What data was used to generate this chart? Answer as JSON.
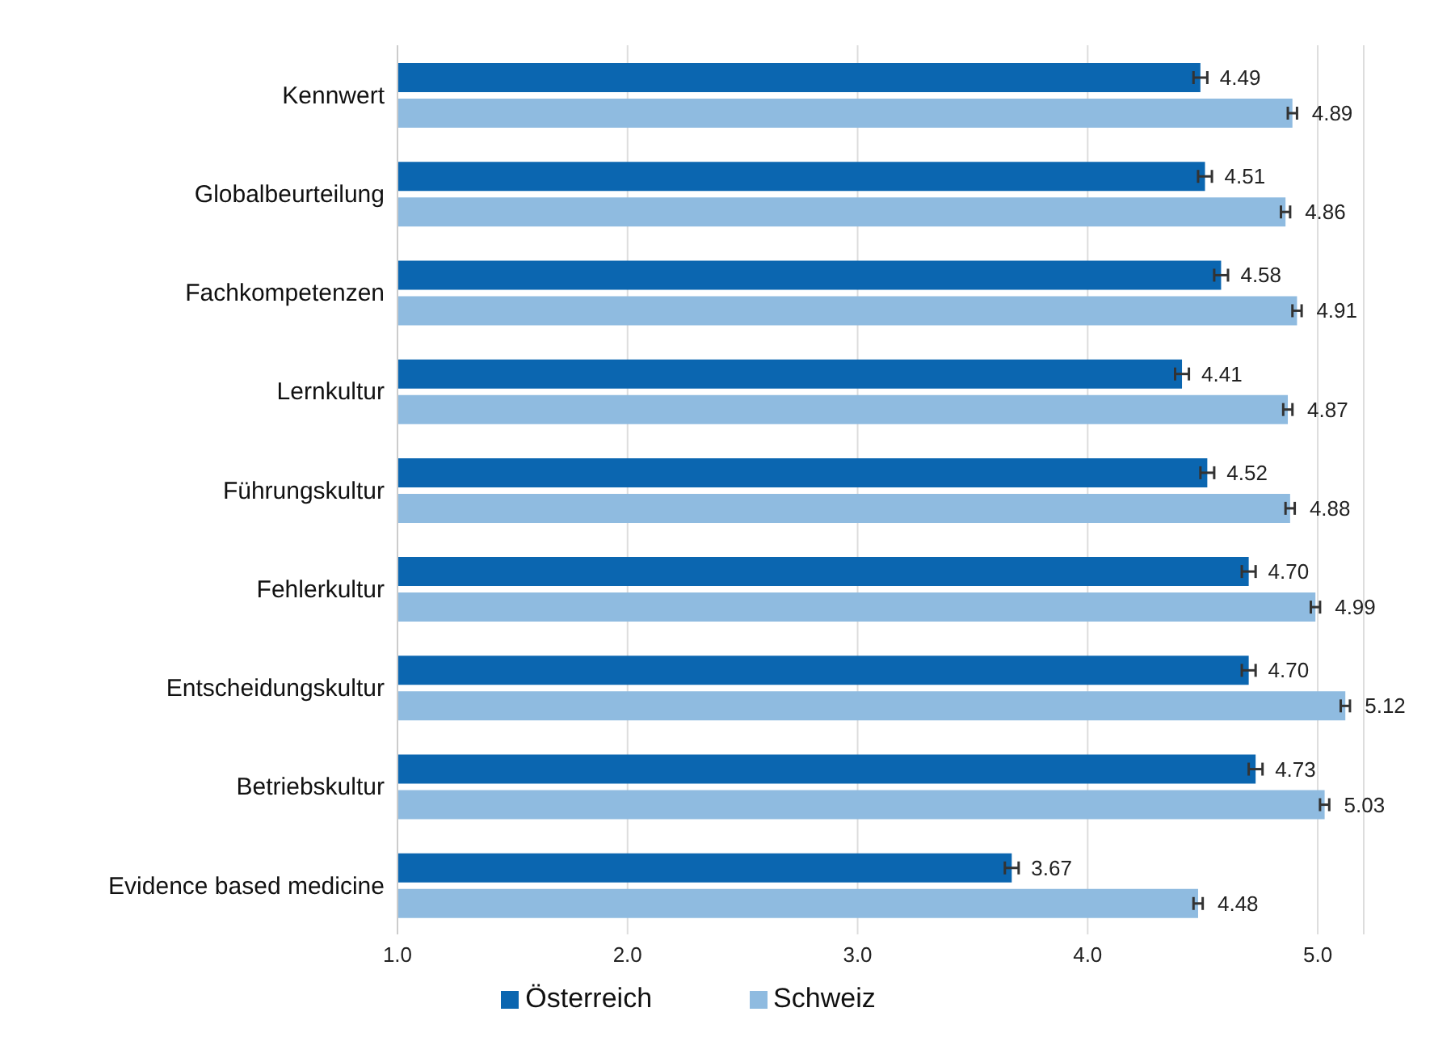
{
  "chart_data": {
    "type": "bar",
    "orientation": "horizontal",
    "categories": [
      "Kennwert",
      "Globalbeurteilung",
      "Fachkompetenzen",
      "Lernkultur",
      "Führungskultur",
      "Fehlerkultur",
      "Entscheidungskultur",
      "Betriebskultur",
      "Evidence based medicine"
    ],
    "series": [
      {
        "name": "Österreich",
        "color": "#0b66b0",
        "values": [
          4.49,
          4.51,
          4.58,
          4.41,
          4.52,
          4.7,
          4.7,
          4.73,
          3.67
        ],
        "errors": [
          0.03,
          0.03,
          0.03,
          0.03,
          0.03,
          0.03,
          0.03,
          0.03,
          0.03
        ],
        "value_labels": [
          "4.49",
          "4.51",
          "4.58",
          "4.41",
          "4.52",
          "4.70",
          "4.70",
          "4.73",
          "3.67"
        ]
      },
      {
        "name": "Schweiz",
        "color": "#8fbbe0",
        "values": [
          4.89,
          4.86,
          4.91,
          4.87,
          4.88,
          4.99,
          5.12,
          5.03,
          4.48
        ],
        "errors": [
          0.02,
          0.02,
          0.02,
          0.02,
          0.02,
          0.02,
          0.02,
          0.02,
          0.02
        ],
        "value_labels": [
          "4.89",
          "4.86",
          "4.91",
          "4.87",
          "4.88",
          "4.99",
          "5.12",
          "5.03",
          "4.48"
        ]
      }
    ],
    "xlim": [
      1,
      5.2
    ],
    "xticks": [
      {
        "value": 1,
        "label": "1.0"
      },
      {
        "value": 2,
        "label": "2.0"
      },
      {
        "value": 3,
        "label": "3.0"
      },
      {
        "value": 4,
        "label": "4.0"
      },
      {
        "value": 5,
        "label": "5.0"
      }
    ],
    "grid": "x",
    "legend": "bottom"
  }
}
